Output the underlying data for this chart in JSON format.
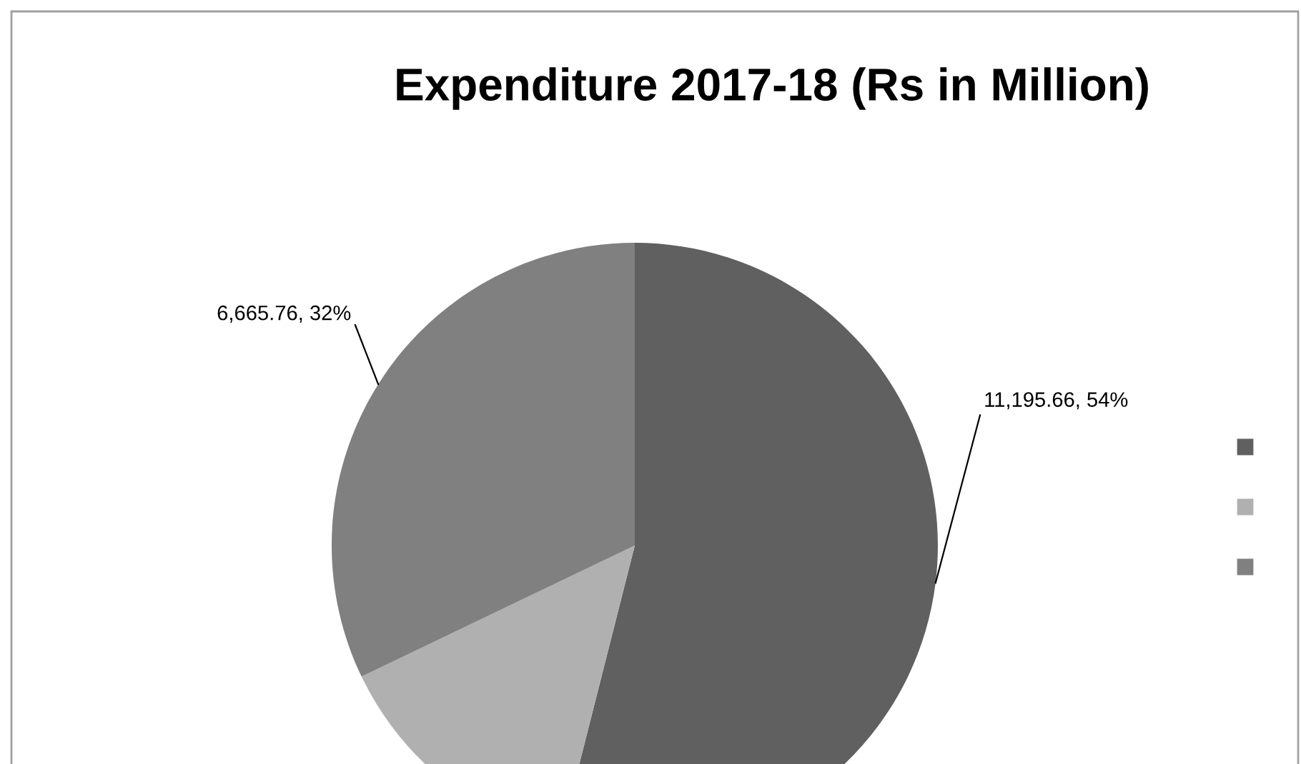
{
  "chart_data": {
    "type": "pie",
    "title": "Expenditure 2017-18 (Rs in Million)",
    "categories": [
      null,
      null,
      null
    ],
    "values": [
      11195.66,
      2890,
      6665.76
    ],
    "colors": [
      "#606060",
      "#b0b0b0",
      "#808080"
    ],
    "value_labels": [
      "11,195.66, 54%",
      null,
      "6,665.76, 32%"
    ]
  }
}
